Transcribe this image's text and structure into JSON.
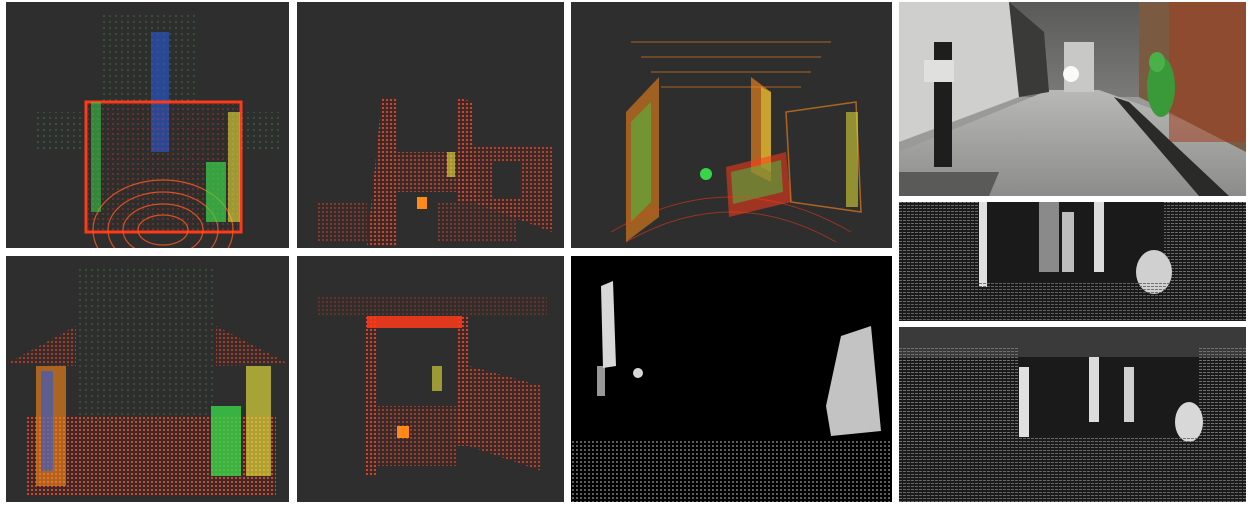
{
  "figure": {
    "panels": [
      {
        "id": "lidar-top-view-1",
        "kind": "point-cloud"
      },
      {
        "id": "lidar-perspective-1",
        "kind": "point-cloud"
      },
      {
        "id": "lidar-perspective-2",
        "kind": "point-cloud"
      },
      {
        "id": "camera-corridor-photo",
        "kind": "photo"
      },
      {
        "id": "lidar-top-view-2",
        "kind": "point-cloud"
      },
      {
        "id": "lidar-perspective-3",
        "kind": "point-cloud"
      },
      {
        "id": "binary-projection",
        "kind": "mask"
      },
      {
        "id": "range-image-1",
        "kind": "range-image"
      },
      {
        "id": "range-image-2",
        "kind": "range-image"
      }
    ],
    "colors": {
      "cloud_bg": "#2e2e2e",
      "cloud_near": "#ff3a1a",
      "cloud_mid": "#ff8a1a",
      "cloud_far": "#3ad44a",
      "cloud_blue": "#2a5ad8",
      "cloud_yellow": "#e8e23a",
      "mask_bg": "#000000",
      "mask_fg": "#d8d8d8"
    }
  }
}
